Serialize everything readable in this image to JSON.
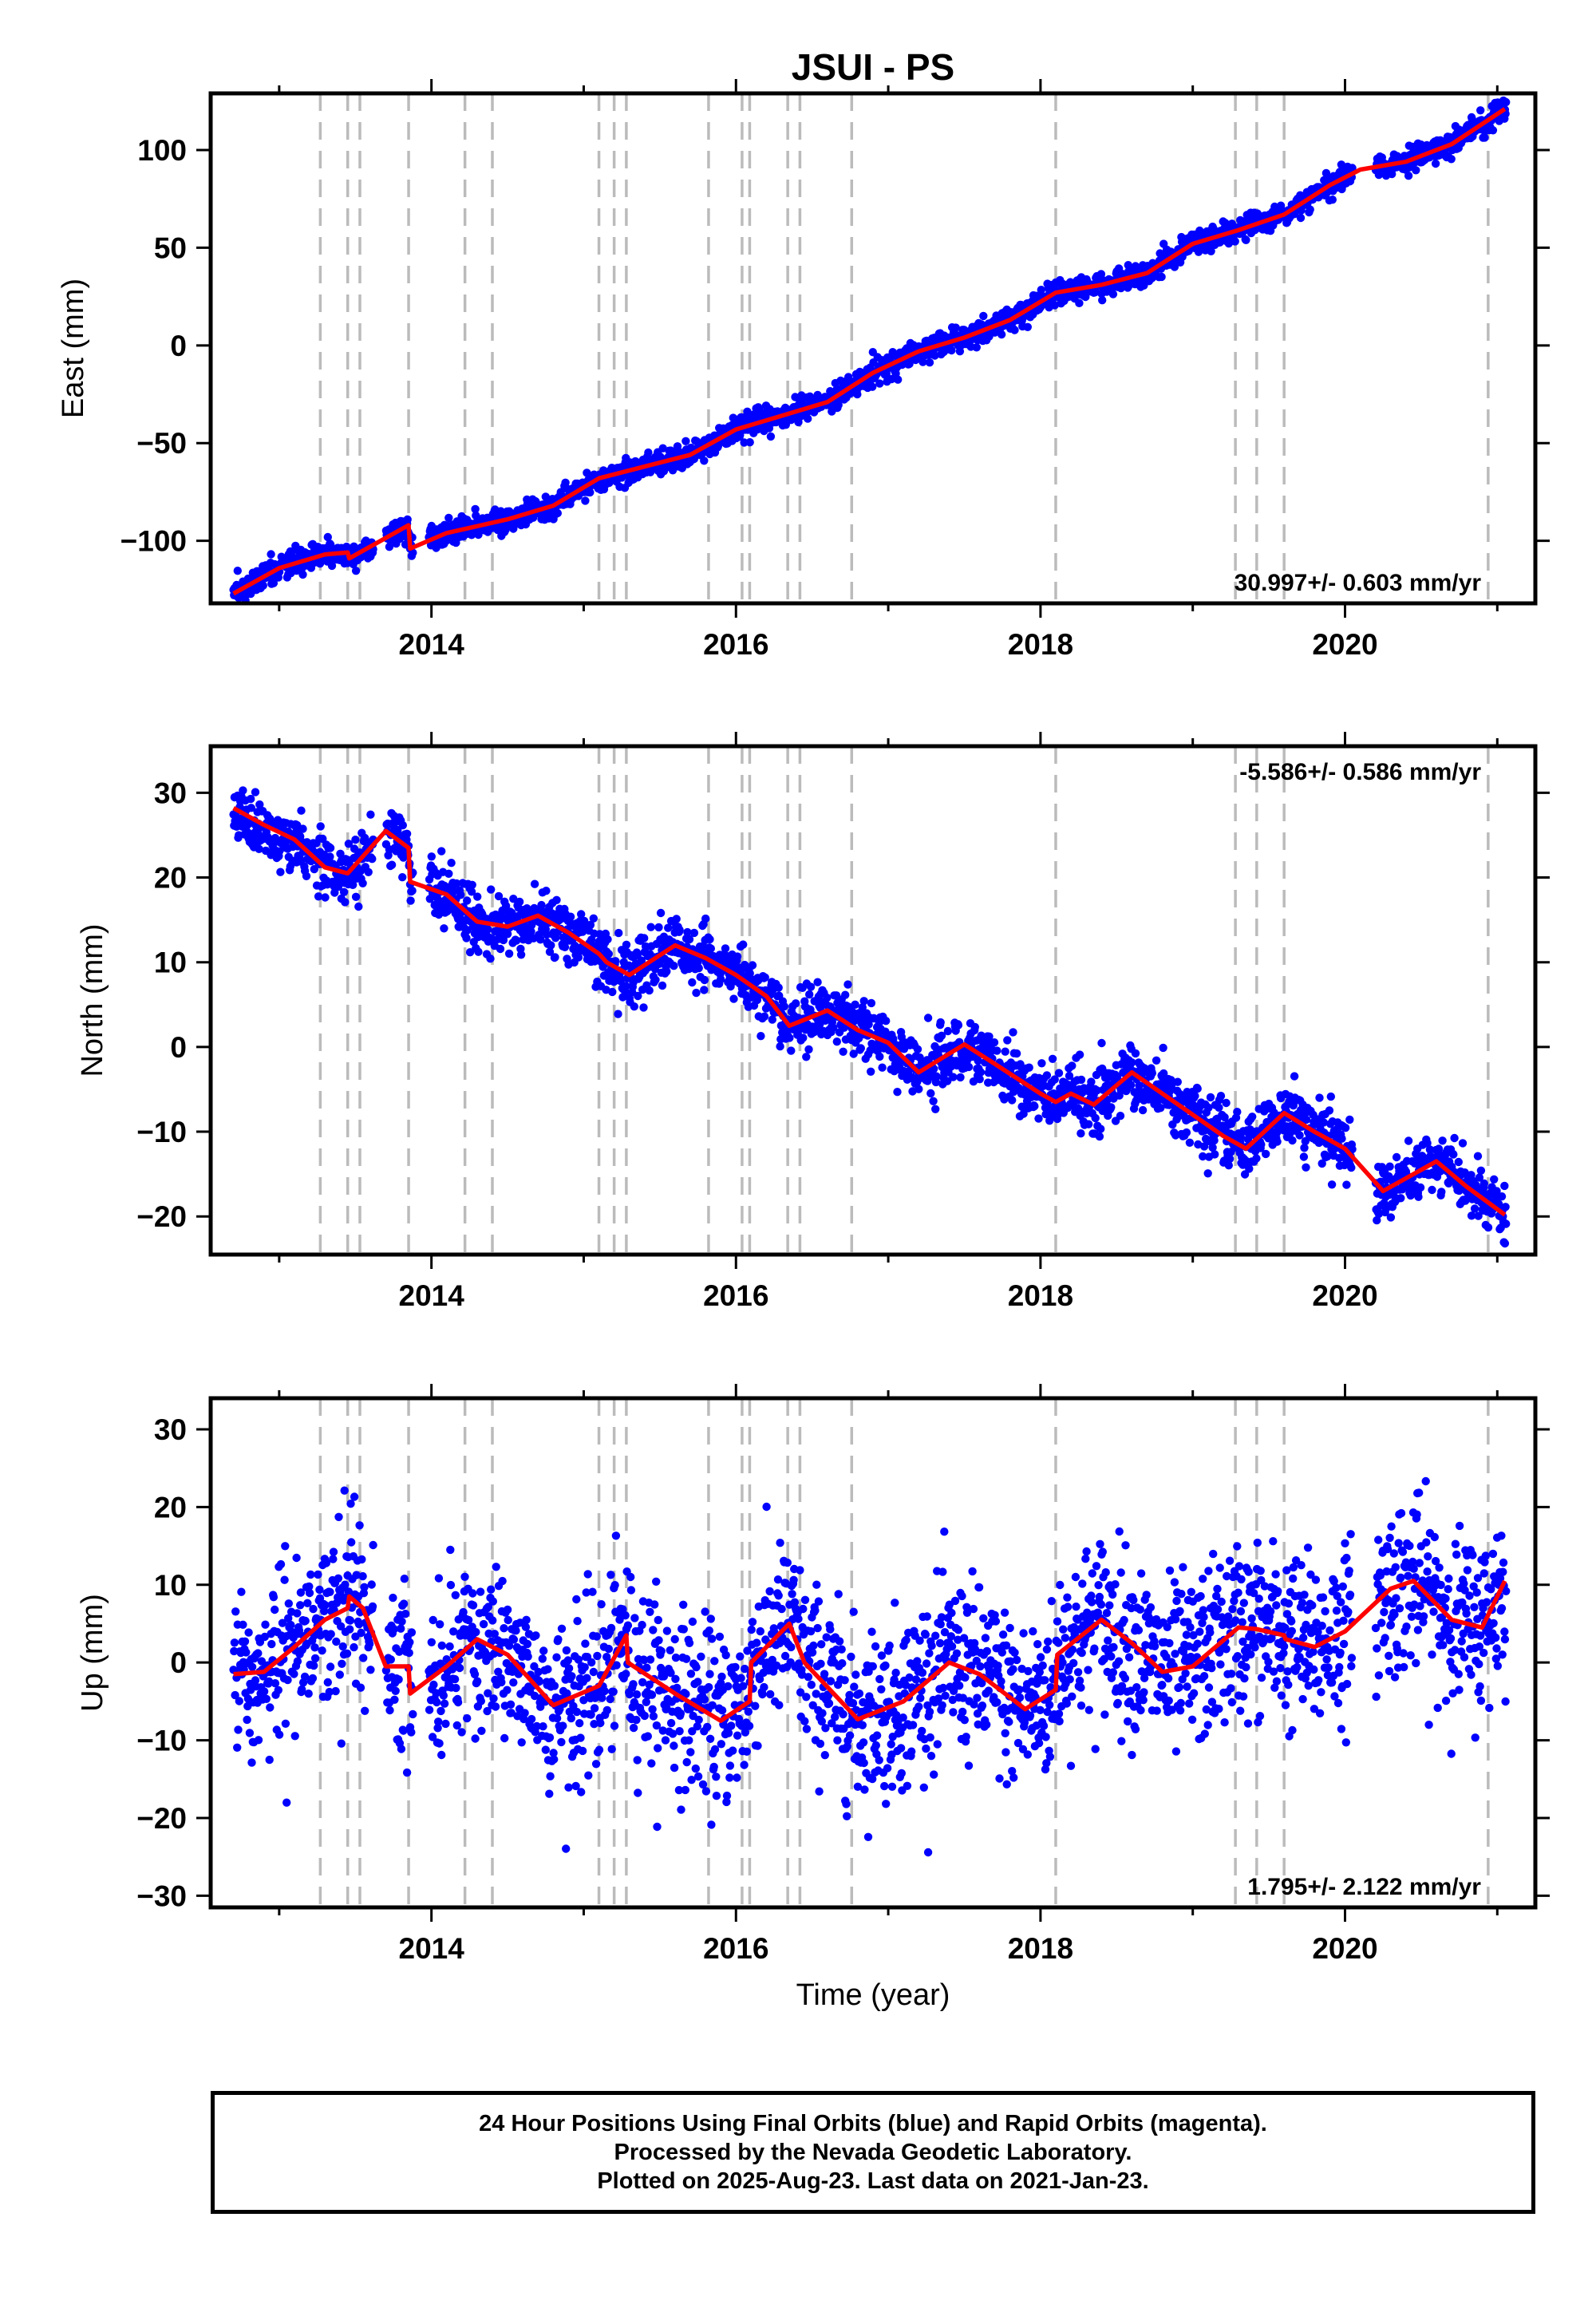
{
  "title": "JSUI - PS",
  "xlabel": "Time (year)",
  "footer": {
    "line1": "24 Hour Positions Using Final Orbits (blue) and Rapid Orbits (magenta).",
    "line2": "Processed by the Nevada Geodetic Laboratory.",
    "line3": "Plotted on 2025-Aug-23. Last data on 2021-Jan-23."
  },
  "colors": {
    "final_orbits": "#0000ff",
    "model": "#ff0000",
    "steps": "#bbbbbb"
  },
  "chart_data": [
    {
      "type": "scatter",
      "panel": "east",
      "ylabel": "East (mm)",
      "xlim": [
        2012.55,
        2021.25
      ],
      "ylim": [
        -132,
        129
      ],
      "xticks": [
        2014,
        2016,
        2018,
        2020
      ],
      "yticks": [
        -100,
        -50,
        0,
        50,
        100
      ],
      "rate": "30.997+/- 0.603 mm/yr",
      "rate_position": "bottom-right",
      "step_epochs": [
        2013.27,
        2013.45,
        2013.53,
        2013.85,
        2014.22,
        2014.4,
        2015.1,
        2015.2,
        2015.28,
        2015.82,
        2016.04,
        2016.09,
        2016.34,
        2016.42,
        2016.76,
        2018.1,
        2019.28,
        2019.42,
        2019.6,
        2020.94
      ],
      "model": [
        [
          2012.7,
          -127
        ],
        [
          2013.0,
          -114
        ],
        [
          2013.3,
          -107
        ],
        [
          2013.45,
          -106
        ],
        [
          2013.46,
          -109
        ],
        [
          2013.85,
          -92
        ],
        [
          2013.86,
          -104
        ],
        [
          2014.1,
          -96
        ],
        [
          2014.5,
          -89
        ],
        [
          2014.8,
          -82
        ],
        [
          2015.1,
          -68
        ],
        [
          2015.4,
          -62
        ],
        [
          2015.7,
          -56
        ],
        [
          2016.0,
          -43
        ],
        [
          2016.3,
          -36
        ],
        [
          2016.6,
          -29
        ],
        [
          2016.9,
          -14
        ],
        [
          2017.2,
          -3
        ],
        [
          2017.5,
          4
        ],
        [
          2017.8,
          13
        ],
        [
          2018.1,
          27
        ],
        [
          2018.4,
          31
        ],
        [
          2018.7,
          37
        ],
        [
          2019.0,
          52
        ],
        [
          2019.3,
          59
        ],
        [
          2019.6,
          67
        ],
        [
          2019.9,
          82
        ],
        [
          2020.1,
          90
        ],
        [
          2020.4,
          94
        ],
        [
          2020.7,
          103
        ],
        [
          2021.05,
          121
        ]
      ],
      "noise": 3.0
    },
    {
      "type": "scatter",
      "panel": "north",
      "ylabel": "North (mm)",
      "xlim": [
        2012.55,
        2021.25
      ],
      "ylim": [
        -24.5,
        35.5
      ],
      "xticks": [
        2014,
        2016,
        2018,
        2020
      ],
      "yticks": [
        -20,
        -10,
        0,
        10,
        20,
        30
      ],
      "rate": "-5.586+/- 0.586 mm/yr",
      "rate_position": "top-right",
      "step_epochs": [
        2013.27,
        2013.45,
        2013.53,
        2013.85,
        2014.22,
        2014.4,
        2015.1,
        2015.2,
        2015.28,
        2015.82,
        2016.04,
        2016.09,
        2016.34,
        2016.42,
        2016.76,
        2018.1,
        2019.28,
        2019.42,
        2019.6,
        2020.94
      ],
      "model": [
        [
          2012.7,
          28.2
        ],
        [
          2012.9,
          26.2
        ],
        [
          2013.1,
          24.5
        ],
        [
          2013.3,
          21.2
        ],
        [
          2013.45,
          20.5
        ],
        [
          2013.6,
          23.5
        ],
        [
          2013.7,
          25.5
        ],
        [
          2013.85,
          23.5
        ],
        [
          2013.86,
          19.5
        ],
        [
          2014.1,
          18
        ],
        [
          2014.3,
          14.8
        ],
        [
          2014.5,
          14.2
        ],
        [
          2014.7,
          15.5
        ],
        [
          2014.9,
          13.5
        ],
        [
          2015.1,
          11
        ],
        [
          2015.15,
          10
        ],
        [
          2015.3,
          8.5
        ],
        [
          2015.6,
          12
        ],
        [
          2015.8,
          10.5
        ],
        [
          2016.0,
          8.5
        ],
        [
          2016.2,
          6
        ],
        [
          2016.35,
          2.5
        ],
        [
          2016.6,
          4.3
        ],
        [
          2016.8,
          2
        ],
        [
          2017.0,
          0.5
        ],
        [
          2017.2,
          -3
        ],
        [
          2017.5,
          0.3
        ],
        [
          2017.7,
          -2
        ],
        [
          2018.0,
          -5.5
        ],
        [
          2018.1,
          -6.5
        ],
        [
          2018.2,
          -5.5
        ],
        [
          2018.35,
          -6.8
        ],
        [
          2018.6,
          -3
        ],
        [
          2018.8,
          -5.5
        ],
        [
          2019.0,
          -8
        ],
        [
          2019.2,
          -10.5
        ],
        [
          2019.35,
          -12
        ],
        [
          2019.6,
          -7.8
        ],
        [
          2019.8,
          -10
        ],
        [
          2020.0,
          -12
        ],
        [
          2020.25,
          -17
        ],
        [
          2020.6,
          -13.5
        ],
        [
          2020.8,
          -16.5
        ],
        [
          2021.05,
          -19.8
        ]
      ],
      "noise": 1.7
    },
    {
      "type": "scatter",
      "panel": "up",
      "ylabel": "Up (mm)",
      "xlim": [
        2012.55,
        2021.25
      ],
      "ylim": [
        -31.5,
        34
      ],
      "xticks": [
        2014,
        2016,
        2018,
        2020
      ],
      "yticks": [
        -30,
        -20,
        -10,
        0,
        10,
        20,
        30
      ],
      "rate": "1.795+/- 2.122 mm/yr",
      "rate_position": "bottom-right",
      "step_epochs": [
        2013.27,
        2013.45,
        2013.53,
        2013.85,
        2014.22,
        2014.4,
        2015.1,
        2015.2,
        2015.28,
        2015.82,
        2016.04,
        2016.09,
        2016.34,
        2016.42,
        2016.76,
        2018.1,
        2019.28,
        2019.42,
        2019.6,
        2020.94
      ],
      "model": [
        [
          2012.7,
          -1.5
        ],
        [
          2012.9,
          -1.2
        ],
        [
          2013.1,
          2
        ],
        [
          2013.3,
          5.5
        ],
        [
          2013.45,
          7
        ],
        [
          2013.46,
          8.5
        ],
        [
          2013.55,
          7
        ],
        [
          2013.7,
          -0.5
        ],
        [
          2013.85,
          -0.5
        ],
        [
          2013.86,
          -4
        ],
        [
          2014.1,
          -0.5
        ],
        [
          2014.3,
          3
        ],
        [
          2014.5,
          1
        ],
        [
          2014.8,
          -5.5
        ],
        [
          2015.1,
          -3
        ],
        [
          2015.28,
          3.5
        ],
        [
          2015.29,
          0
        ],
        [
          2015.6,
          -4
        ],
        [
          2015.9,
          -7.5
        ],
        [
          2016.09,
          -5
        ],
        [
          2016.1,
          0
        ],
        [
          2016.35,
          5
        ],
        [
          2016.45,
          0
        ],
        [
          2016.8,
          -7.3
        ],
        [
          2017.1,
          -5
        ],
        [
          2017.4,
          0
        ],
        [
          2017.6,
          -1.5
        ],
        [
          2017.9,
          -6
        ],
        [
          2018.1,
          -3.5
        ],
        [
          2018.11,
          1
        ],
        [
          2018.4,
          5.5
        ],
        [
          2018.6,
          2.5
        ],
        [
          2018.8,
          -1.2
        ],
        [
          2019.0,
          -0.5
        ],
        [
          2019.3,
          4.5
        ],
        [
          2019.42,
          4.3
        ],
        [
          2019.6,
          3.5
        ],
        [
          2019.61,
          3
        ],
        [
          2019.8,
          2
        ],
        [
          2020.0,
          4
        ],
        [
          2020.3,
          9.5
        ],
        [
          2020.45,
          10.5
        ],
        [
          2020.7,
          5.5
        ],
        [
          2020.9,
          4.5
        ],
        [
          2021.05,
          10.5
        ]
      ],
      "noise": 5.5
    }
  ]
}
